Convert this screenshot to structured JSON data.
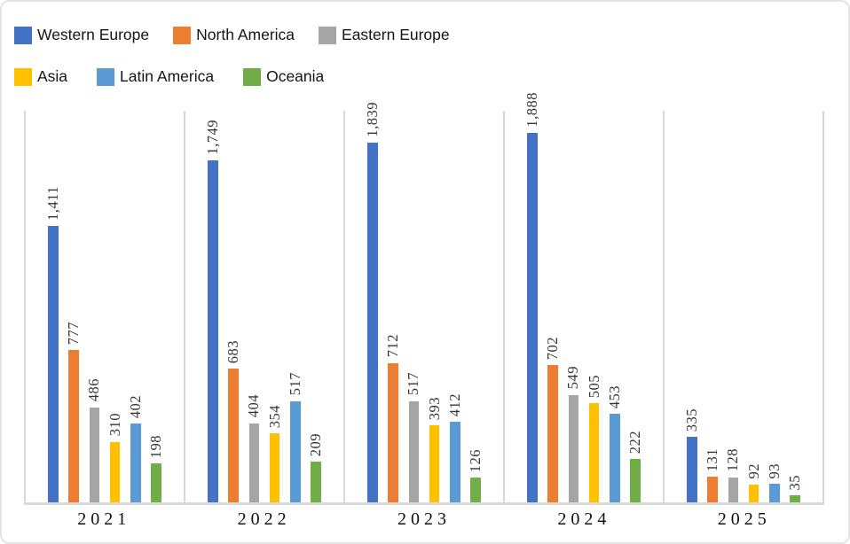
{
  "chart_data": {
    "type": "bar",
    "title": "",
    "xlabel": "",
    "ylabel": "",
    "categories": [
      "2021",
      "2022",
      "2023",
      "2024",
      "2025"
    ],
    "series": [
      {
        "name": "Western Europe",
        "color": "#4472C4",
        "values": [
          1411,
          1749,
          1839,
          1888,
          335
        ]
      },
      {
        "name": "North America",
        "color": "#ED7D31",
        "values": [
          777,
          683,
          712,
          702,
          131
        ]
      },
      {
        "name": "Eastern Europe",
        "color": "#A5A5A5",
        "values": [
          486,
          404,
          517,
          549,
          128
        ]
      },
      {
        "name": "Asia",
        "color": "#FFC000",
        "values": [
          310,
          354,
          393,
          505,
          92
        ]
      },
      {
        "name": "Latin America",
        "color": "#5B9BD5",
        "values": [
          402,
          517,
          412,
          453,
          93
        ]
      },
      {
        "name": "Oceania",
        "color": "#70AD47",
        "values": [
          198,
          209,
          126,
          222,
          35
        ]
      }
    ],
    "ylim": [
      0,
      2000
    ],
    "legend_position": "top-left",
    "legend_rows": [
      3,
      3
    ],
    "data_labels": "rotated-90-comma-formatted",
    "grid": "vertical-panel-dividers",
    "axis_color": "#D9D9D9"
  }
}
